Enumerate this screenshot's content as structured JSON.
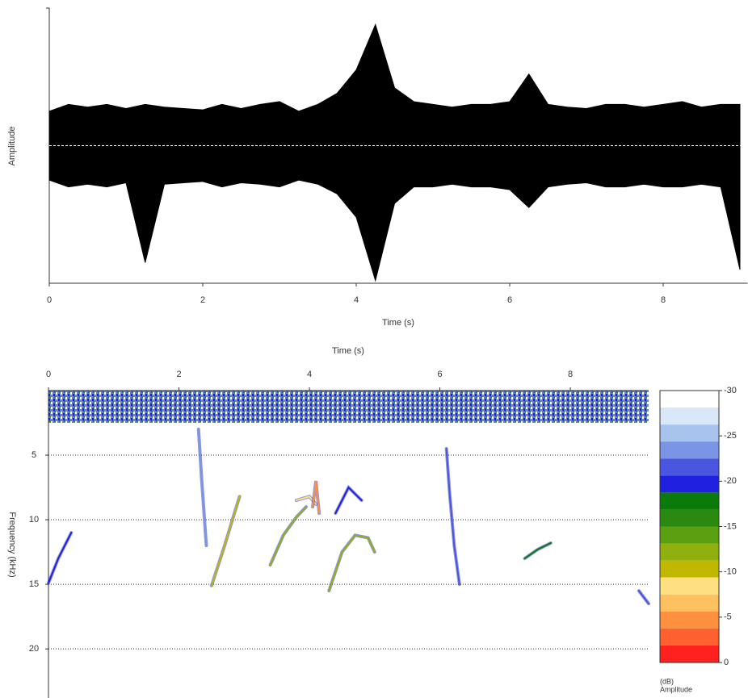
{
  "chart_data": [
    {
      "type": "waveform",
      "xlabel": "Time (s)",
      "ylabel": "Amplitude",
      "xlim": [
        0,
        9.1
      ],
      "xticks": [
        0,
        2,
        4,
        6,
        8
      ],
      "ylim": [
        -1,
        1
      ],
      "color": "#000000",
      "x": [
        0,
        0.25,
        0.5,
        0.75,
        1,
        1.25,
        1.5,
        1.75,
        2,
        2.25,
        2.5,
        2.75,
        3,
        3.25,
        3.5,
        3.75,
        4,
        4.25,
        4.5,
        4.75,
        5,
        5.25,
        5.5,
        5.75,
        6,
        6.25,
        6.5,
        6.75,
        7,
        7.25,
        7.5,
        7.75,
        8,
        8.25,
        8.5,
        8.75,
        9
      ],
      "series": [
        {
          "values": [
            0.25,
            0.3,
            0.28,
            0.3,
            0.27,
            0.3,
            0.28,
            0.27,
            0.26,
            0.3,
            0.27,
            0.3,
            0.32,
            0.25,
            0.3,
            0.38,
            0.55,
            0.88,
            0.42,
            0.32,
            0.3,
            0.28,
            0.3,
            0.3,
            0.32,
            0.52,
            0.3,
            0.28,
            0.27,
            0.3,
            0.3,
            0.28,
            0.3,
            0.32,
            0.28,
            0.3,
            0.3
          ]
        },
        {
          "values": [
            -0.25,
            -0.3,
            -0.28,
            -0.3,
            -0.27,
            -0.85,
            -0.28,
            -0.27,
            -0.26,
            -0.3,
            -0.27,
            -0.28,
            -0.3,
            -0.25,
            -0.28,
            -0.35,
            -0.52,
            -0.98,
            -0.42,
            -0.3,
            -0.3,
            -0.28,
            -0.3,
            -0.3,
            -0.32,
            -0.45,
            -0.3,
            -0.28,
            -0.27,
            -0.3,
            -0.3,
            -0.28,
            -0.3,
            -0.3,
            -0.28,
            -0.3,
            -0.9
          ]
        }
      ]
    },
    {
      "type": "spectrogram",
      "xlabel": "Time (s)",
      "ylabel": "Frequency (kHz)",
      "xlim": [
        0,
        9.2
      ],
      "xticks": [
        0,
        2,
        4,
        6,
        8
      ],
      "ylim": [
        0,
        23.8
      ],
      "yticks": [
        5,
        10,
        15,
        20
      ],
      "grid": true,
      "flipped_vertically": true,
      "colorbar_label": [
        "Amplitude",
        "(dB)"
      ],
      "clim": [
        -30,
        0
      ],
      "cticks": [
        -30,
        -25,
        -20,
        -15,
        -10,
        -5,
        0
      ],
      "colormap": [
        "#ffffff",
        "#d8e8f8",
        "#a8c4ee",
        "#7a95e6",
        "#4a55e0",
        "#2020e0",
        "#0a7a0a",
        "#2a8a10",
        "#5aa010",
        "#90b010",
        "#c0b800",
        "#ffe080",
        "#ffc060",
        "#ff9040",
        "#ff6030",
        "#ff2020"
      ],
      "traces": [
        {
          "x": [
            0,
            0.15,
            0.35
          ],
          "y": [
            14.9,
            13,
            11
          ],
          "level": -20
        },
        {
          "x": [
            2.5,
            2.7,
            2.85,
            2.93
          ],
          "y": [
            15.1,
            12,
            9.5,
            8.2
          ],
          "level": -10
        },
        {
          "x": [
            3.4,
            3.6,
            3.8,
            3.95
          ],
          "y": [
            13.5,
            11.2,
            9.8,
            9
          ],
          "level": -12
        },
        {
          "x": [
            3.8,
            4.0,
            4.1
          ],
          "y": [
            8.5,
            8.2,
            8.8
          ],
          "level": -8
        },
        {
          "x": [
            4.05,
            4.1,
            4.15
          ],
          "y": [
            9,
            7,
            9.5
          ],
          "level": -5
        },
        {
          "x": [
            4.3,
            4.5,
            4.7,
            4.9,
            5.0
          ],
          "y": [
            15.5,
            12.5,
            11.2,
            11.4,
            12.5
          ],
          "level": -12
        },
        {
          "x": [
            4.4,
            4.6,
            4.8
          ],
          "y": [
            9.5,
            7.5,
            8.5
          ],
          "level": -20
        },
        {
          "x": [
            6.1,
            6.15,
            6.22,
            6.3
          ],
          "y": [
            4.5,
            8,
            12,
            15
          ],
          "level": -22
        },
        {
          "x": [
            7.3,
            7.5,
            7.7
          ],
          "y": [
            13,
            12.3,
            11.8
          ],
          "level": -18
        },
        {
          "x": [
            2.3,
            2.35,
            2.42
          ],
          "y": [
            3,
            7,
            12
          ],
          "level": -24
        },
        {
          "x": [
            9.05,
            9.2
          ],
          "y": [
            15.5,
            16.5
          ],
          "level": -22
        }
      ]
    }
  ]
}
